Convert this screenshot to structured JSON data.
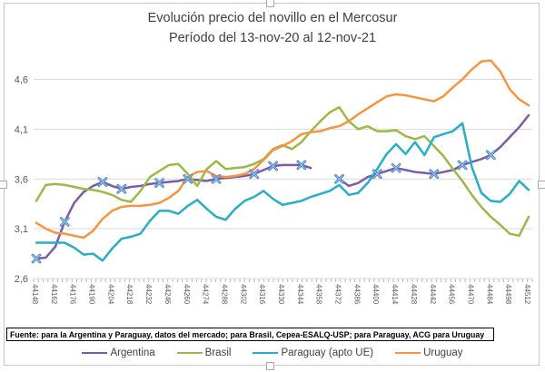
{
  "source_note": "Fuente: para la Argentina y Paraguay, datos del mercado; para Brasil, Cepea-ESALQ-USP; para Paraguay, ACG para Uruguay",
  "colors": {
    "chart_border": "#c9c9c9",
    "resize_handle_border": "#a6a6a6",
    "gridline": "#d9d9d9",
    "axis_ticks": "#b7b7b7",
    "tick_label_text": "#595959",
    "title_text": "#404040",
    "legend_text": "#404040",
    "source_text": "#000000",
    "marker_stroke": "#4a80c4",
    "marker_fill": "#9dc3e6"
  },
  "chart_data": {
    "type": "line",
    "title": "Evolución precio del novillo en el Mercosur",
    "subtitle": "Período del 13-nov-20 al 12-nov-21",
    "xlabel": "",
    "ylabel": "",
    "ylim": [
      2.6,
      4.6
    ],
    "grid": "horizontal",
    "legend_position": "bottom",
    "x_start_serial": 44148,
    "x_step_days": 7,
    "n_points": 53,
    "x_tick_labels": [
      "44148",
      "44162",
      "44176",
      "44190",
      "44204",
      "44218",
      "44232",
      "44246",
      "44260",
      "44274",
      "44288",
      "44302",
      "44316",
      "44330",
      "44344",
      "44358",
      "44372",
      "44386",
      "44400",
      "44414",
      "44428",
      "44442",
      "44456",
      "44470",
      "44484",
      "44498",
      "44512"
    ],
    "y_ticks": [
      {
        "label": "2,6",
        "value": 2.6
      },
      {
        "label": "3,1",
        "value": 3.1
      },
      {
        "label": "3,6",
        "value": 3.6
      },
      {
        "label": "4,1",
        "value": 4.1
      },
      {
        "label": "4,6",
        "value": 4.6
      }
    ],
    "series": [
      {
        "name": "Argentina",
        "color": "#7d5ba6",
        "marker": "x",
        "marker_indices": [
          0,
          3,
          7,
          9,
          13,
          16,
          19,
          23,
          25,
          28,
          32,
          36,
          38,
          42,
          45,
          48
        ],
        "values": [
          2.8,
          2.81,
          2.92,
          3.17,
          3.36,
          3.47,
          3.53,
          3.57,
          3.53,
          3.5,
          3.52,
          3.53,
          3.55,
          3.56,
          3.57,
          3.58,
          3.6,
          3.59,
          3.58,
          3.6,
          3.61,
          3.62,
          3.63,
          3.65,
          3.69,
          3.73,
          3.74,
          3.74,
          3.74,
          3.71,
          null,
          null,
          3.6,
          3.53,
          3.56,
          3.62,
          3.65,
          3.68,
          3.71,
          3.69,
          3.67,
          3.66,
          3.65,
          3.67,
          3.69,
          3.74,
          3.77,
          3.8,
          3.84,
          3.92,
          4.02,
          4.12,
          4.24
        ]
      },
      {
        "name": "Brasil",
        "color": "#9aba45",
        "marker": "none",
        "values": [
          3.38,
          3.54,
          3.55,
          3.54,
          3.52,
          3.5,
          3.49,
          3.47,
          3.44,
          3.39,
          3.37,
          3.48,
          3.62,
          3.68,
          3.74,
          3.75,
          3.65,
          3.53,
          3.7,
          3.78,
          3.7,
          3.71,
          3.72,
          3.75,
          3.8,
          3.9,
          3.94,
          3.9,
          3.97,
          4.08,
          4.18,
          4.27,
          4.32,
          4.18,
          4.1,
          4.13,
          4.08,
          4.08,
          4.09,
          4.03,
          4.0,
          4.03,
          3.93,
          3.83,
          3.7,
          3.58,
          3.44,
          3.32,
          3.22,
          3.14,
          3.05,
          3.03,
          3.22
        ]
      },
      {
        "name": "Paraguay (apto UE)",
        "color": "#28aec8",
        "marker": "none",
        "values": [
          2.96,
          2.96,
          2.96,
          2.96,
          2.91,
          2.84,
          2.85,
          2.78,
          2.9,
          3.0,
          3.02,
          3.05,
          3.18,
          3.28,
          3.28,
          3.25,
          3.33,
          3.39,
          3.3,
          3.22,
          3.19,
          3.3,
          3.38,
          3.42,
          3.48,
          3.4,
          3.34,
          3.36,
          3.38,
          3.42,
          3.45,
          3.48,
          3.54,
          3.44,
          3.46,
          3.56,
          3.7,
          3.85,
          3.95,
          3.85,
          3.97,
          3.84,
          4.02,
          4.05,
          4.08,
          4.16,
          3.72,
          3.46,
          3.38,
          3.37,
          3.45,
          3.58,
          3.49
        ]
      },
      {
        "name": "Uruguay",
        "color": "#f79440",
        "marker": "none",
        "values": [
          3.16,
          3.1,
          3.06,
          3.05,
          3.03,
          3.01,
          3.08,
          3.2,
          3.28,
          3.32,
          3.33,
          3.33,
          3.34,
          3.36,
          3.41,
          3.48,
          3.62,
          3.67,
          3.68,
          3.63,
          3.62,
          3.63,
          3.65,
          3.7,
          3.79,
          3.89,
          3.93,
          3.98,
          4.05,
          4.07,
          4.08,
          4.11,
          4.13,
          4.18,
          4.25,
          4.31,
          4.37,
          4.43,
          4.45,
          4.44,
          4.42,
          4.4,
          4.38,
          4.43,
          4.52,
          4.6,
          4.7,
          4.78,
          4.79,
          4.68,
          4.5,
          4.4,
          4.34
        ]
      }
    ]
  }
}
